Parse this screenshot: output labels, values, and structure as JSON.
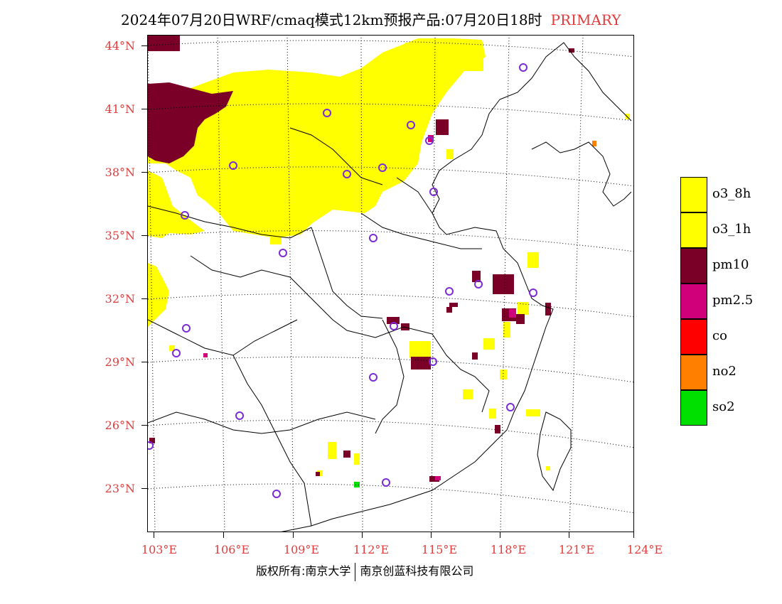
{
  "title": {
    "main": "2024年07月20日WRF/cmaq模式12km预报产品:07月20日18时",
    "tag": "PRIMARY"
  },
  "axes": {
    "lat_labels": [
      "44°N",
      "41°N",
      "38°N",
      "35°N",
      "32°N",
      "29°N",
      "26°N",
      "23°N"
    ],
    "lon_labels": [
      "103°E",
      "106°E",
      "109°E",
      "112°E",
      "115°E",
      "118°E",
      "121°E",
      "124°E"
    ]
  },
  "legend": [
    {
      "label": "o3_8h",
      "color": "#ffff00"
    },
    {
      "label": "o3_1h",
      "color": "#ffff00"
    },
    {
      "label": "pm10",
      "color": "#7a0028"
    },
    {
      "label": "pm2.5",
      "color": "#d0007a"
    },
    {
      "label": "co",
      "color": "#ff0000"
    },
    {
      "label": "no2",
      "color": "#ff7f00"
    },
    {
      "label": "so2",
      "color": "#00e000"
    }
  ],
  "colors": {
    "o3": "#ffff00",
    "pm10": "#7a0028",
    "pm25": "#d0007a",
    "co": "#ff0000",
    "no2": "#ff7f00",
    "so2": "#00e000",
    "station_marker": "#7b2ad8",
    "axis_label": "#e03c3c"
  },
  "footer": {
    "left": "版权所有:南京大学",
    "right": "南京创蓝科技有限公司"
  }
}
